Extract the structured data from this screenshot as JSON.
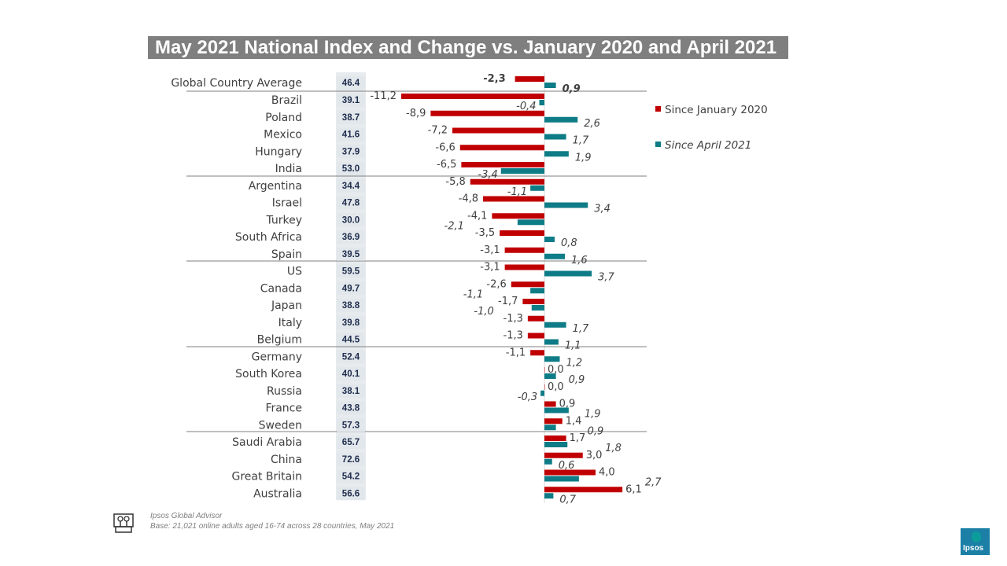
{
  "chart_data": {
    "type": "bar",
    "title": "May 2021 National Index and Change vs. January 2020 and April 2021",
    "legend": [
      "Since January 2020",
      "Since April 2021"
    ],
    "legend_position": "right",
    "colors": {
      "jan2020": "#c00000",
      "apr2021": "#0e7c86",
      "index_bg": "#e7ebee"
    },
    "rows": [
      {
        "name": "Global Country Average",
        "index": "46.4",
        "jan2020": -2.3,
        "apr2021": 0.9,
        "bold": true
      },
      {
        "name": "Brazil",
        "index": "39.1",
        "jan2020": -11.2,
        "apr2021": -0.4
      },
      {
        "name": "Poland",
        "index": "38.7",
        "jan2020": -8.9,
        "apr2021": 2.6
      },
      {
        "name": "Mexico",
        "index": "41.6",
        "jan2020": -7.2,
        "apr2021": 1.7
      },
      {
        "name": "Hungary",
        "index": "37.9",
        "jan2020": -6.6,
        "apr2021": 1.9
      },
      {
        "name": "India",
        "index": "53.0",
        "jan2020": -6.5,
        "apr2021": -3.4
      },
      {
        "name": "Argentina",
        "index": "34.4",
        "jan2020": -5.8,
        "apr2021": -1.1
      },
      {
        "name": "Israel",
        "index": "47.8",
        "jan2020": -4.8,
        "apr2021": 3.4
      },
      {
        "name": "Turkey",
        "index": "30.0",
        "jan2020": -4.1,
        "apr2021": -2.1
      },
      {
        "name": "South Africa",
        "index": "36.9",
        "jan2020": -3.5,
        "apr2021": 0.8
      },
      {
        "name": "Spain",
        "index": "39.5",
        "jan2020": -3.1,
        "apr2021": 1.6
      },
      {
        "name": "US",
        "index": "59.5",
        "jan2020": -3.1,
        "apr2021": 3.7
      },
      {
        "name": "Canada",
        "index": "49.7",
        "jan2020": -2.6,
        "apr2021": -1.1
      },
      {
        "name": "Japan",
        "index": "38.8",
        "jan2020": -1.7,
        "apr2021": -1.0
      },
      {
        "name": "Italy",
        "index": "39.8",
        "jan2020": -1.3,
        "apr2021": 1.7
      },
      {
        "name": "Belgium",
        "index": "44.5",
        "jan2020": -1.3,
        "apr2021": 1.1
      },
      {
        "name": "Germany",
        "index": "52.4",
        "jan2020": -1.1,
        "apr2021": 1.2
      },
      {
        "name": "South Korea",
        "index": "40.1",
        "jan2020": 0.0,
        "apr2021": 0.9
      },
      {
        "name": "Russia",
        "index": "38.1",
        "jan2020": 0.0,
        "apr2021": -0.3
      },
      {
        "name": "France",
        "index": "43.8",
        "jan2020": 0.9,
        "apr2021": 1.9
      },
      {
        "name": "Sweden",
        "index": "57.3",
        "jan2020": 1.4,
        "apr2021": 0.9
      },
      {
        "name": "Saudi Arabia",
        "index": "65.7",
        "jan2020": 1.7,
        "apr2021": 1.8
      },
      {
        "name": "China",
        "index": "72.6",
        "jan2020": 3.0,
        "apr2021": 0.6
      },
      {
        "name": "Great Britain",
        "index": "54.2",
        "jan2020": 4.0,
        "apr2021": 2.7
      },
      {
        "name": "Australia",
        "index": "56.6",
        "jan2020": 6.1,
        "apr2021": 0.7
      }
    ]
  },
  "footer": {
    "source": "Ipsos Global Advisor",
    "base": "Base: 21,021 online adults aged 16-74 across 28 countries, May 2021"
  },
  "logo": {
    "text": "Ipsos"
  }
}
